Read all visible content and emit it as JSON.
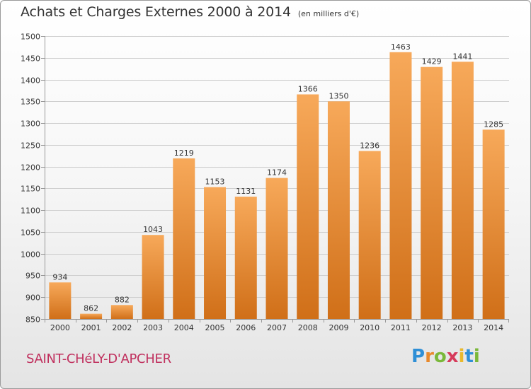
{
  "title": "Achats et Charges Externes 2000 à 2014",
  "subtitle": "(en milliers d'€)",
  "commune": "SAINT-CHéLY-D'APCHER",
  "logo": {
    "text": "Proxiti",
    "letters": [
      {
        "ch": "P",
        "color": "#2e8fd6"
      },
      {
        "ch": "r",
        "color": "#e8892c"
      },
      {
        "ch": "o",
        "color": "#7ab83a"
      },
      {
        "ch": "x",
        "color": "#d63a5a"
      },
      {
        "ch": "i",
        "color": "#e8b92c"
      },
      {
        "ch": "t",
        "color": "#2e8fd6"
      },
      {
        "ch": "i",
        "color": "#7ab83a"
      }
    ]
  },
  "colors": {
    "bar_top": "#f7a95a",
    "bar_bottom": "#d06f18",
    "grid": "#cfcfcf",
    "axis": "#999999",
    "text": "#333333"
  },
  "chart_data": {
    "type": "bar",
    "categories": [
      "2000",
      "2001",
      "2002",
      "2003",
      "2004",
      "2005",
      "2006",
      "2007",
      "2008",
      "2009",
      "2010",
      "2011",
      "2012",
      "2013",
      "2014"
    ],
    "values": [
      934,
      862,
      882,
      1043,
      1219,
      1153,
      1131,
      1174,
      1366,
      1350,
      1236,
      1463,
      1429,
      1441,
      1285
    ],
    "ylim": [
      850,
      1500
    ],
    "yticks": [
      850,
      900,
      950,
      1000,
      1050,
      1100,
      1150,
      1200,
      1250,
      1300,
      1350,
      1400,
      1450,
      1500
    ],
    "grid": true,
    "legend": "none"
  }
}
